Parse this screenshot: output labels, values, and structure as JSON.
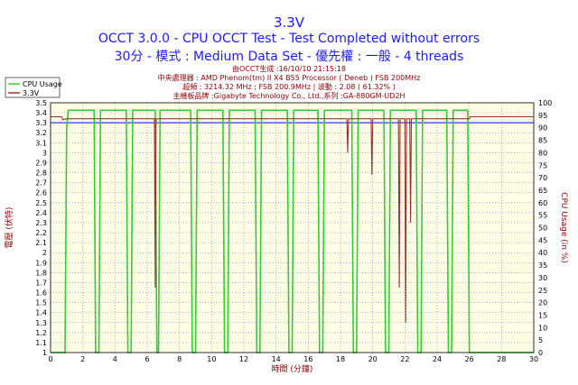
{
  "header": {
    "title": "3.3V",
    "subtitle1": "OCCT 3.0.0 - CPU OCCT Test - Test Completed without errors",
    "subtitle2": "30分 - 模式 : Medium Data Set - 優先權 : 一般 - 4 threads"
  },
  "info": {
    "line1": "由OCCT生成 :16/10/10 21:15:18",
    "line2": "中央處理器 : AMD Phenom(tm) II X4 B55 Processor ( Deneb ) FSB 200MHz",
    "line3": "超頻 : 3214.32 MHz ; FSB 200.9MHz | 波動 : 2.08 ( 61.32% )",
    "line4": "主機板品牌 :Gigabyte Technology Co., Ltd.,系列 :GA-880GM-UD2H"
  },
  "colors": {
    "cpu_usage": "#33cc33",
    "voltage": "#993333",
    "plot_bg": "#ffffe6",
    "grid": "#3333cc",
    "ref_line": "#3333ff"
  },
  "chart_data": {
    "type": "line",
    "xlabel": "時間 (分鐘)",
    "ylabel_left": "電壓 (伏特)",
    "ylabel_right": "CPU Usage (in %)",
    "xlim": [
      0,
      30
    ],
    "ylim_left": [
      1.0,
      3.5
    ],
    "ylim_right": [
      0,
      100
    ],
    "x_ticks": [
      0,
      2,
      4,
      6,
      8,
      10,
      12,
      14,
      16,
      18,
      20,
      22,
      24,
      26,
      28,
      30
    ],
    "y_left_ticks": [
      "1",
      "1.1",
      "1.2",
      "1.3",
      "1.4",
      "1.5",
      "1.6",
      "1.7",
      "1.8",
      "1.9",
      "2",
      "2.1",
      "2.2",
      "2.3",
      "2.4",
      "2.5",
      "2.6",
      "2.7",
      "2.8",
      "2.9",
      "3",
      "3.1",
      "3.2",
      "3.3",
      "3.4",
      "3.5"
    ],
    "y_right_ticks": [
      0,
      5,
      10,
      15,
      20,
      25,
      30,
      35,
      40,
      45,
      50,
      55,
      60,
      65,
      70,
      75,
      80,
      85,
      90,
      95,
      100
    ],
    "grid": true,
    "legend_position": "top-left",
    "reference_line": 3.3,
    "series": [
      {
        "name": "CPU Usage",
        "axis": "right",
        "points": [
          [
            0,
            0
          ],
          [
            0.9,
            0
          ],
          [
            1.0,
            90
          ],
          [
            1.1,
            97
          ],
          [
            2.7,
            97
          ],
          [
            2.8,
            0
          ],
          [
            3.0,
            0
          ],
          [
            3.1,
            97
          ],
          [
            4.7,
            97
          ],
          [
            4.8,
            0
          ],
          [
            5.0,
            0
          ],
          [
            5.1,
            97
          ],
          [
            6.5,
            97
          ],
          [
            6.6,
            0
          ],
          [
            6.7,
            0
          ],
          [
            6.8,
            97
          ],
          [
            8.7,
            97
          ],
          [
            8.8,
            0
          ],
          [
            9.0,
            0
          ],
          [
            9.1,
            97
          ],
          [
            10.7,
            97
          ],
          [
            10.8,
            0
          ],
          [
            11.0,
            0
          ],
          [
            11.1,
            97
          ],
          [
            12.7,
            97
          ],
          [
            12.8,
            0
          ],
          [
            13.0,
            0
          ],
          [
            13.1,
            97
          ],
          [
            14.7,
            97
          ],
          [
            14.8,
            0
          ],
          [
            15.0,
            0
          ],
          [
            15.1,
            97
          ],
          [
            16.6,
            97
          ],
          [
            16.7,
            0
          ],
          [
            16.9,
            0
          ],
          [
            17.0,
            97
          ],
          [
            18.7,
            97
          ],
          [
            18.8,
            0
          ],
          [
            19.0,
            0
          ],
          [
            19.1,
            97
          ],
          [
            20.7,
            97
          ],
          [
            20.8,
            0
          ],
          [
            21.0,
            0
          ],
          [
            21.1,
            97
          ],
          [
            22.7,
            97
          ],
          [
            22.8,
            0
          ],
          [
            23.0,
            0
          ],
          [
            23.1,
            97
          ],
          [
            24.6,
            97
          ],
          [
            24.7,
            0
          ],
          [
            24.9,
            0
          ],
          [
            25.0,
            97
          ],
          [
            25.9,
            97
          ],
          [
            26.0,
            0
          ],
          [
            30,
            0
          ]
        ]
      },
      {
        "name": "3.3V",
        "axis": "left",
        "points": [
          [
            0,
            3.36
          ],
          [
            0.7,
            3.36
          ],
          [
            0.75,
            3.33
          ],
          [
            1.0,
            3.34
          ],
          [
            6.45,
            3.34
          ],
          [
            6.5,
            1.65
          ],
          [
            6.55,
            3.34
          ],
          [
            18.4,
            3.34
          ],
          [
            18.45,
            3.0
          ],
          [
            18.5,
            3.34
          ],
          [
            19.9,
            3.34
          ],
          [
            19.95,
            2.78
          ],
          [
            20.0,
            3.34
          ],
          [
            21.6,
            3.34
          ],
          [
            21.65,
            1.65
          ],
          [
            21.7,
            3.34
          ],
          [
            22.0,
            3.34
          ],
          [
            22.05,
            1.3
          ],
          [
            22.1,
            3.34
          ],
          [
            22.3,
            3.34
          ],
          [
            22.35,
            2.3
          ],
          [
            22.4,
            3.34
          ],
          [
            26.0,
            3.34
          ],
          [
            26.05,
            3.36
          ],
          [
            30,
            3.36
          ]
        ]
      }
    ]
  }
}
